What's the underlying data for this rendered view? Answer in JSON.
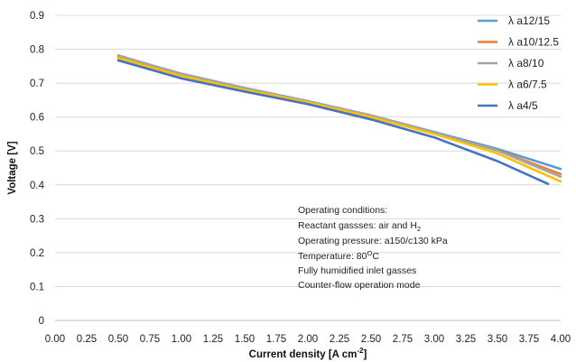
{
  "chart_data": {
    "type": "line",
    "xlabel": "Current density [A cm",
    "xlabel_sup": "-2",
    "xlabel_end": "]",
    "ylabel": "Voltage [V]",
    "xlim": [
      0,
      4
    ],
    "ylim": [
      0,
      0.9
    ],
    "x_ticks": [
      "0.00",
      "0.25",
      "0.50",
      "0.75",
      "1.00",
      "1.25",
      "1.50",
      "1.75",
      "2.00",
      "2.25",
      "2.50",
      "2.75",
      "3.00",
      "3.25",
      "3.50",
      "3.75",
      "4.00"
    ],
    "y_ticks": [
      "0",
      "0.1",
      "0.2",
      "0.3",
      "0.4",
      "0.5",
      "0.6",
      "0.7",
      "0.8",
      "0.9"
    ],
    "grid": "horizontal",
    "legend_position": "top-right",
    "series": [
      {
        "name": "λ a12/15",
        "color": "#5B9BD5",
        "x": [
          0.5,
          1.0,
          1.5,
          2.0,
          2.5,
          3.0,
          3.5,
          4.0
        ],
        "values": [
          0.78,
          0.728,
          0.686,
          0.647,
          0.605,
          0.556,
          0.506,
          0.447
        ]
      },
      {
        "name": "λ a10/12.5",
        "color": "#ED7D31",
        "x": [
          0.5,
          1.0,
          1.5,
          2.0,
          2.5,
          3.0,
          3.5,
          4.0
        ],
        "values": [
          0.778,
          0.725,
          0.684,
          0.645,
          0.603,
          0.553,
          0.502,
          0.432
        ]
      },
      {
        "name": "λ a8/10",
        "color": "#A5A5A5",
        "x": [
          0.5,
          1.0,
          1.5,
          2.0,
          2.5,
          3.0,
          3.5,
          4.0
        ],
        "values": [
          0.782,
          0.727,
          0.685,
          0.646,
          0.605,
          0.554,
          0.501,
          0.424
        ]
      },
      {
        "name": "λ a6/7.5",
        "color": "#FFC000",
        "x": [
          0.5,
          1.0,
          1.5,
          2.0,
          2.5,
          3.0,
          3.5,
          4.0
        ],
        "values": [
          0.774,
          0.721,
          0.68,
          0.643,
          0.6,
          0.55,
          0.493,
          0.41
        ]
      },
      {
        "name": "λ a4/5",
        "color": "#4472C4",
        "x": [
          0.5,
          1.0,
          1.5,
          2.0,
          2.5,
          3.0,
          3.5,
          3.9
        ],
        "values": [
          0.767,
          0.714,
          0.675,
          0.638,
          0.593,
          0.54,
          0.47,
          0.403
        ]
      }
    ],
    "annotation": {
      "line1": "Operating conditions:",
      "line2_prefix": "Reactant gassses: air and H",
      "line2_sub": "2",
      "line3": "Operating pressure: a150/c130 kPa",
      "line4_prefix": "Temperature: 80",
      "line4_sup": "O",
      "line4_suffix": "C",
      "line5": "Fully humidified inlet gasses",
      "line6": "Counter-flow operation mode"
    }
  }
}
